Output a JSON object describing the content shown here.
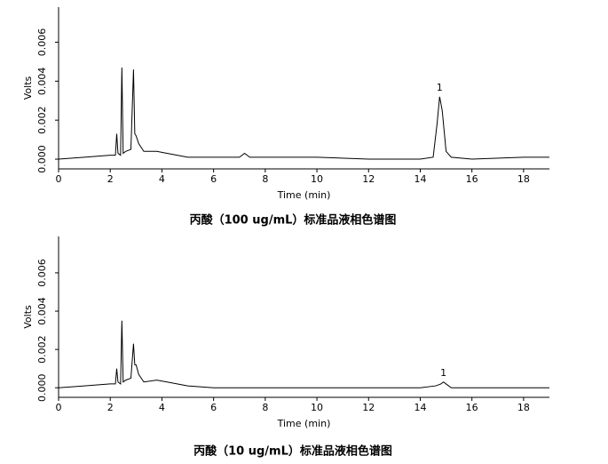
{
  "chart_data": [
    {
      "type": "line",
      "title": "丙酸（100 ug/mL）标准品液相色谱图",
      "x_label": "Time (min)",
      "y_label": "Volts",
      "color": "#000000",
      "x": [
        0,
        1,
        2,
        2.2,
        2.25,
        2.3,
        2.4,
        2.45,
        2.5,
        2.6,
        2.8,
        2.9,
        2.95,
        3.0,
        3.1,
        3.3,
        3.8,
        4.2,
        5,
        6,
        7,
        7.2,
        7.4,
        8,
        10,
        12,
        14,
        14.5,
        14.65,
        14.75,
        14.85,
        15,
        15.2,
        16,
        18,
        19
      ],
      "values": [
        0.0,
        0.0001,
        0.0002,
        0.0002,
        0.0013,
        0.0003,
        0.0002,
        0.0047,
        0.0003,
        0.0004,
        0.0005,
        0.0046,
        0.0013,
        0.0012,
        0.0008,
        0.0004,
        0.0004,
        0.0003,
        0.0001,
        0.0001,
        0.0001,
        0.0003,
        0.0001,
        0.0001,
        0.0001,
        0.0,
        0.0,
        0.0001,
        0.0018,
        0.0032,
        0.0025,
        0.0004,
        0.0001,
        0.0,
        0.0001,
        0.0001
      ],
      "annotations": [
        {
          "text": "1",
          "x": 14.75
        }
      ],
      "xlim": [
        0,
        19
      ],
      "xticks": [
        0,
        2,
        4,
        6,
        8,
        10,
        12,
        14,
        16,
        18
      ],
      "ylim": [
        -0.0005,
        0.0078
      ],
      "yticks": [
        {
          "value": 0,
          "label": "0.000"
        },
        0.002,
        0.004,
        0.006
      ]
    },
    {
      "type": "line",
      "title": "丙酸（10 ug/mL）标准品液相色谱图",
      "x_label": "Time (min)",
      "y_label": "Volts",
      "color": "#000000",
      "x": [
        0,
        1,
        2,
        2.2,
        2.25,
        2.3,
        2.4,
        2.45,
        2.5,
        2.6,
        2.8,
        2.9,
        2.95,
        3.0,
        3.1,
        3.3,
        3.8,
        4.2,
        5,
        6,
        7,
        8,
        10,
        12,
        14,
        14.6,
        14.8,
        14.9,
        15.0,
        15.2,
        16,
        18,
        19
      ],
      "values": [
        0.0,
        0.0001,
        0.0002,
        0.0002,
        0.001,
        0.0003,
        0.0002,
        0.0035,
        0.0003,
        0.0004,
        0.0005,
        0.0023,
        0.0012,
        0.0012,
        0.0007,
        0.0003,
        0.0004,
        0.0003,
        0.0001,
        0.0,
        0.0,
        0.0,
        0.0,
        0.0,
        0.0,
        0.0001,
        0.0002,
        0.0003,
        0.0002,
        0.0,
        0.0,
        0.0,
        0.0
      ],
      "annotations": [
        {
          "text": "1",
          "x": 14.9
        }
      ],
      "xlim": [
        0,
        19
      ],
      "xticks": [
        0,
        2,
        4,
        6,
        8,
        10,
        12,
        14,
        16,
        18
      ],
      "ylim": [
        -0.0005,
        0.0079
      ],
      "yticks": [
        {
          "value": 0,
          "label": "0.000"
        },
        0.002,
        0.004,
        0.006
      ]
    }
  ]
}
